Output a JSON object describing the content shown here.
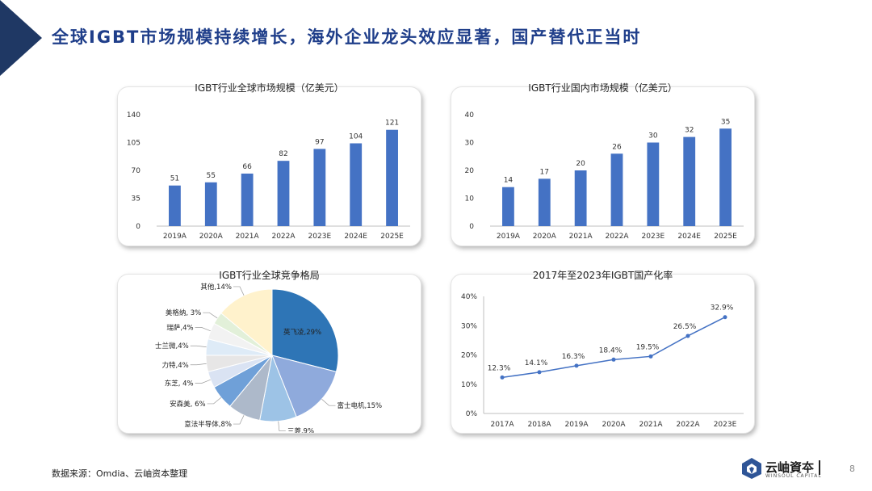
{
  "page": {
    "title": "全球IGBT市场规模持续增长，海外企业龙头效应显著，国产替代正当时",
    "source": "数据来源：Omdia、云岫资本整理",
    "logo_text": "云岫資夲",
    "logo_sub": "WINSOUL CAPITAL",
    "page_number": "8"
  },
  "colors": {
    "title": "#1f3e8a",
    "bar": "#4472c4",
    "line": "#4472c4",
    "corner": "#1f3864"
  },
  "icons": {
    "logo": "winsoul-logo-icon"
  },
  "chart_data": [
    {
      "type": "bar",
      "title": "IGBT行业全球市场规模（亿美元）",
      "categories": [
        "2019A",
        "2020A",
        "2021A",
        "2022A",
        "2023E",
        "2024E",
        "2025E"
      ],
      "values": [
        51,
        55,
        66,
        82,
        97,
        104,
        121
      ],
      "yticks": [
        0,
        35,
        70,
        105,
        140
      ],
      "ylim": [
        0,
        140
      ]
    },
    {
      "type": "bar",
      "title": "IGBT行业国内市场规模（亿美元）",
      "categories": [
        "2019A",
        "2020A",
        "2021A",
        "2022A",
        "2023E",
        "2024E",
        "2025E"
      ],
      "values": [
        14,
        17,
        20,
        26,
        30,
        32,
        35
      ],
      "yticks": [
        0,
        10,
        20,
        30,
        40
      ],
      "ylim": [
        0,
        40
      ]
    },
    {
      "type": "pie",
      "title": "IGBT行业全球竞争格局",
      "slices": [
        {
          "label": "英飞凌,29%",
          "value": 29,
          "color": "#2e75b6"
        },
        {
          "label": "富士电机,15%",
          "value": 15,
          "color": "#8faadc"
        },
        {
          "label": "三菱,9%",
          "value": 9,
          "color": "#9dc3e6"
        },
        {
          "label": "意法半导体,8%",
          "value": 8,
          "color": "#adb9ca"
        },
        {
          "label": "安森美, 6%",
          "value": 6,
          "color": "#6fa0d8"
        },
        {
          "label": "东芝, 4%",
          "value": 4,
          "color": "#dae3f3"
        },
        {
          "label": "力特,4%",
          "value": 4,
          "color": "#e7e6e6"
        },
        {
          "label": "士兰微,4%",
          "value": 4,
          "color": "#deebf7"
        },
        {
          "label": "瑞萨,4%",
          "value": 4,
          "color": "#f2f2f2"
        },
        {
          "label": "美格纳, 3%",
          "value": 3,
          "color": "#e2f0d9"
        },
        {
          "label": "其他,14%",
          "value": 14,
          "color": "#fff2cc"
        }
      ]
    },
    {
      "type": "line",
      "title": "2017年至2023年IGBT国产化率",
      "categories": [
        "2017A",
        "2018A",
        "2019A",
        "2020A",
        "2021A",
        "2022A",
        "2023E"
      ],
      "values": [
        12.3,
        14.1,
        16.3,
        18.4,
        19.5,
        26.5,
        32.9
      ],
      "labels": [
        "12.3%",
        "14.1%",
        "16.3%",
        "18.4%",
        "19.5%",
        "26.5%",
        "32.9%"
      ],
      "yticks": [
        "0%",
        "10%",
        "20%",
        "30%",
        "40%"
      ],
      "ylim": [
        0,
        40
      ]
    }
  ]
}
